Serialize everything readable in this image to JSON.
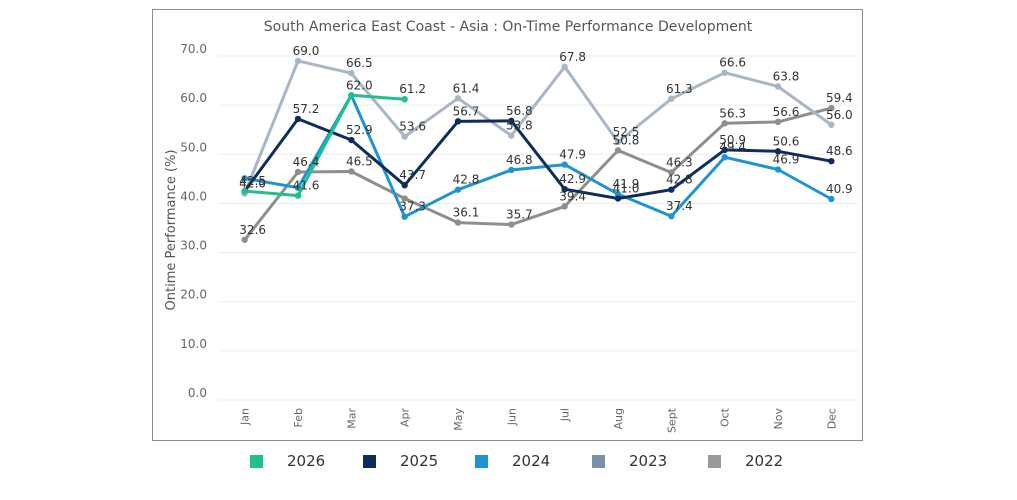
{
  "chart_data": {
    "type": "line",
    "title": "South America East Coast - Asia  : On-Time  Performance Development",
    "ylabel": "Ontime Performance (%)",
    "xlabel": "",
    "ylim": [
      0,
      70
    ],
    "yticks": [
      "0.0",
      "10.0",
      "20.0",
      "30.0",
      "40.0",
      "50.0",
      "60.0",
      "70.0"
    ],
    "grid": true,
    "legend_position": "bottom",
    "categories": [
      "Jan",
      "Feb",
      "Mar",
      "Apr",
      "May",
      "Jun",
      "Jul",
      "Aug",
      "Sept",
      "Oct",
      "Nov",
      "Dec"
    ],
    "series": [
      {
        "name": "2026",
        "color": "#1fbf8f",
        "values": [
          42.5,
          41.6,
          62.0,
          61.2,
          null,
          null,
          null,
          null,
          null,
          null,
          null,
          null
        ]
      },
      {
        "name": "2025",
        "color": "#0f2d5c",
        "values": [
          42.5,
          57.2,
          52.9,
          43.7,
          56.7,
          56.8,
          42.9,
          41.0,
          42.8,
          50.9,
          50.6,
          48.6
        ]
      },
      {
        "name": "2024",
        "color": "#1e95cf",
        "values": [
          45.1,
          43.2,
          62.0,
          37.3,
          42.8,
          46.8,
          47.9,
          41.9,
          37.4,
          49.4,
          46.9,
          40.9
        ]
      },
      {
        "name": "2023",
        "color": "#a8b6c6",
        "values": [
          42.0,
          69.0,
          66.5,
          53.6,
          61.4,
          53.8,
          67.8,
          52.5,
          61.3,
          66.6,
          63.8,
          56.0
        ]
      },
      {
        "name": "2022",
        "color": "#8f8f8a",
        "values": [
          32.6,
          46.4,
          46.5,
          41.0,
          36.1,
          35.7,
          39.4,
          50.8,
          46.3,
          56.3,
          56.6,
          59.4
        ]
      }
    ],
    "data_labels": [
      {
        "text": "42.0",
        "series": "2023",
        "index": 0
      },
      {
        "text": "42.5",
        "series": "2025",
        "index": 0
      },
      {
        "text": "32.6",
        "series": "2022",
        "index": 0
      },
      {
        "text": "69.0",
        "series": "2023",
        "index": 1
      },
      {
        "text": "57.2",
        "series": "2025",
        "index": 1
      },
      {
        "text": "46.4",
        "series": "2022",
        "index": 1
      },
      {
        "text": "41.6",
        "series": "2026",
        "index": 1
      },
      {
        "text": "66.5",
        "series": "2023",
        "index": 2
      },
      {
        "text": "62.0",
        "series": "2026",
        "index": 2
      },
      {
        "text": "52.9",
        "series": "2025",
        "index": 2
      },
      {
        "text": "46.5",
        "series": "2022",
        "index": 2
      },
      {
        "text": "61.2",
        "series": "2026",
        "index": 3
      },
      {
        "text": "53.6",
        "series": "2023",
        "index": 3
      },
      {
        "text": "43.7",
        "series": "2025",
        "index": 3
      },
      {
        "text": "37.3",
        "series": "2024",
        "index": 3
      },
      {
        "text": "61.4",
        "series": "2023",
        "index": 4
      },
      {
        "text": "56.7",
        "series": "2025",
        "index": 4
      },
      {
        "text": "42.8",
        "series": "2024",
        "index": 4
      },
      {
        "text": "36.1",
        "series": "2022",
        "index": 4
      },
      {
        "text": "56.8",
        "series": "2025",
        "index": 5
      },
      {
        "text": "53.8",
        "series": "2023",
        "index": 5
      },
      {
        "text": "46.8",
        "series": "2024",
        "index": 5
      },
      {
        "text": "35.7",
        "series": "2022",
        "index": 5
      },
      {
        "text": "67.8",
        "series": "2023",
        "index": 6
      },
      {
        "text": "47.9",
        "series": "2024",
        "index": 6
      },
      {
        "text": "42.9",
        "series": "2025",
        "index": 6
      },
      {
        "text": "39.4",
        "series": "2022",
        "index": 6
      },
      {
        "text": "52.5",
        "series": "2023",
        "index": 7
      },
      {
        "text": "50.8",
        "series": "2022",
        "index": 7
      },
      {
        "text": "41.9",
        "series": "2024",
        "index": 7
      },
      {
        "text": "41.0",
        "series": "2025",
        "index": 7
      },
      {
        "text": "61.3",
        "series": "2023",
        "index": 8
      },
      {
        "text": "46.3",
        "series": "2022",
        "index": 8
      },
      {
        "text": "42.8",
        "series": "2025",
        "index": 8
      },
      {
        "text": "37.4",
        "series": "2024",
        "index": 8
      },
      {
        "text": "66.6",
        "series": "2023",
        "index": 9
      },
      {
        "text": "56.3",
        "series": "2022",
        "index": 9
      },
      {
        "text": "50.9",
        "series": "2025",
        "index": 9
      },
      {
        "text": "49.4",
        "series": "2024",
        "index": 9
      },
      {
        "text": "63.8",
        "series": "2023",
        "index": 10
      },
      {
        "text": "56.6",
        "series": "2022",
        "index": 10
      },
      {
        "text": "50.6",
        "series": "2025",
        "index": 10
      },
      {
        "text": "46.9",
        "series": "2024",
        "index": 10
      },
      {
        "text": "59.4",
        "series": "2022",
        "index": 11
      },
      {
        "text": "56.0",
        "series": "2023",
        "index": 11
      },
      {
        "text": "48.6",
        "series": "2025",
        "index": 11
      },
      {
        "text": "40.9",
        "series": "2024",
        "index": 11
      }
    ]
  },
  "legend": {
    "items": [
      {
        "label": "2026",
        "color": "#1fbf8f"
      },
      {
        "label": "2025",
        "color": "#0f2d5c"
      },
      {
        "label": "2024",
        "color": "#1e95cf"
      },
      {
        "label": "2023",
        "color": "#7a8fa8"
      },
      {
        "label": "2022",
        "color": "#9a9a96"
      }
    ]
  }
}
